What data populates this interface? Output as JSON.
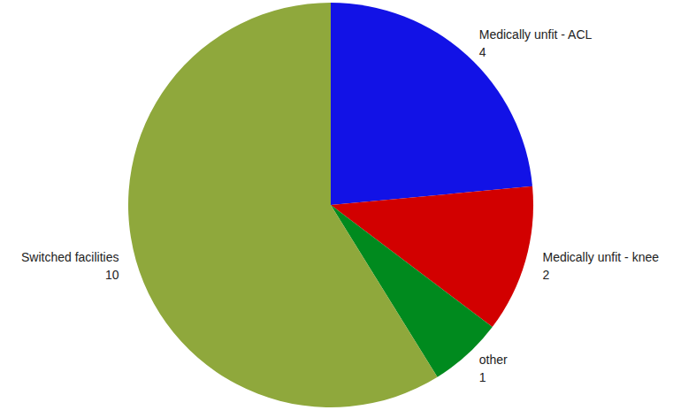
{
  "chart_data": {
    "type": "pie",
    "categories": [
      "Medically unfit - ACL",
      "Medically unfit - knee",
      "other",
      "Switched facilities"
    ],
    "values": [
      4,
      2,
      1,
      10
    ],
    "colors": [
      "#1212e6",
      "#d20000",
      "#008a1e",
      "#8fa83c"
    ],
    "data_labels": true
  }
}
